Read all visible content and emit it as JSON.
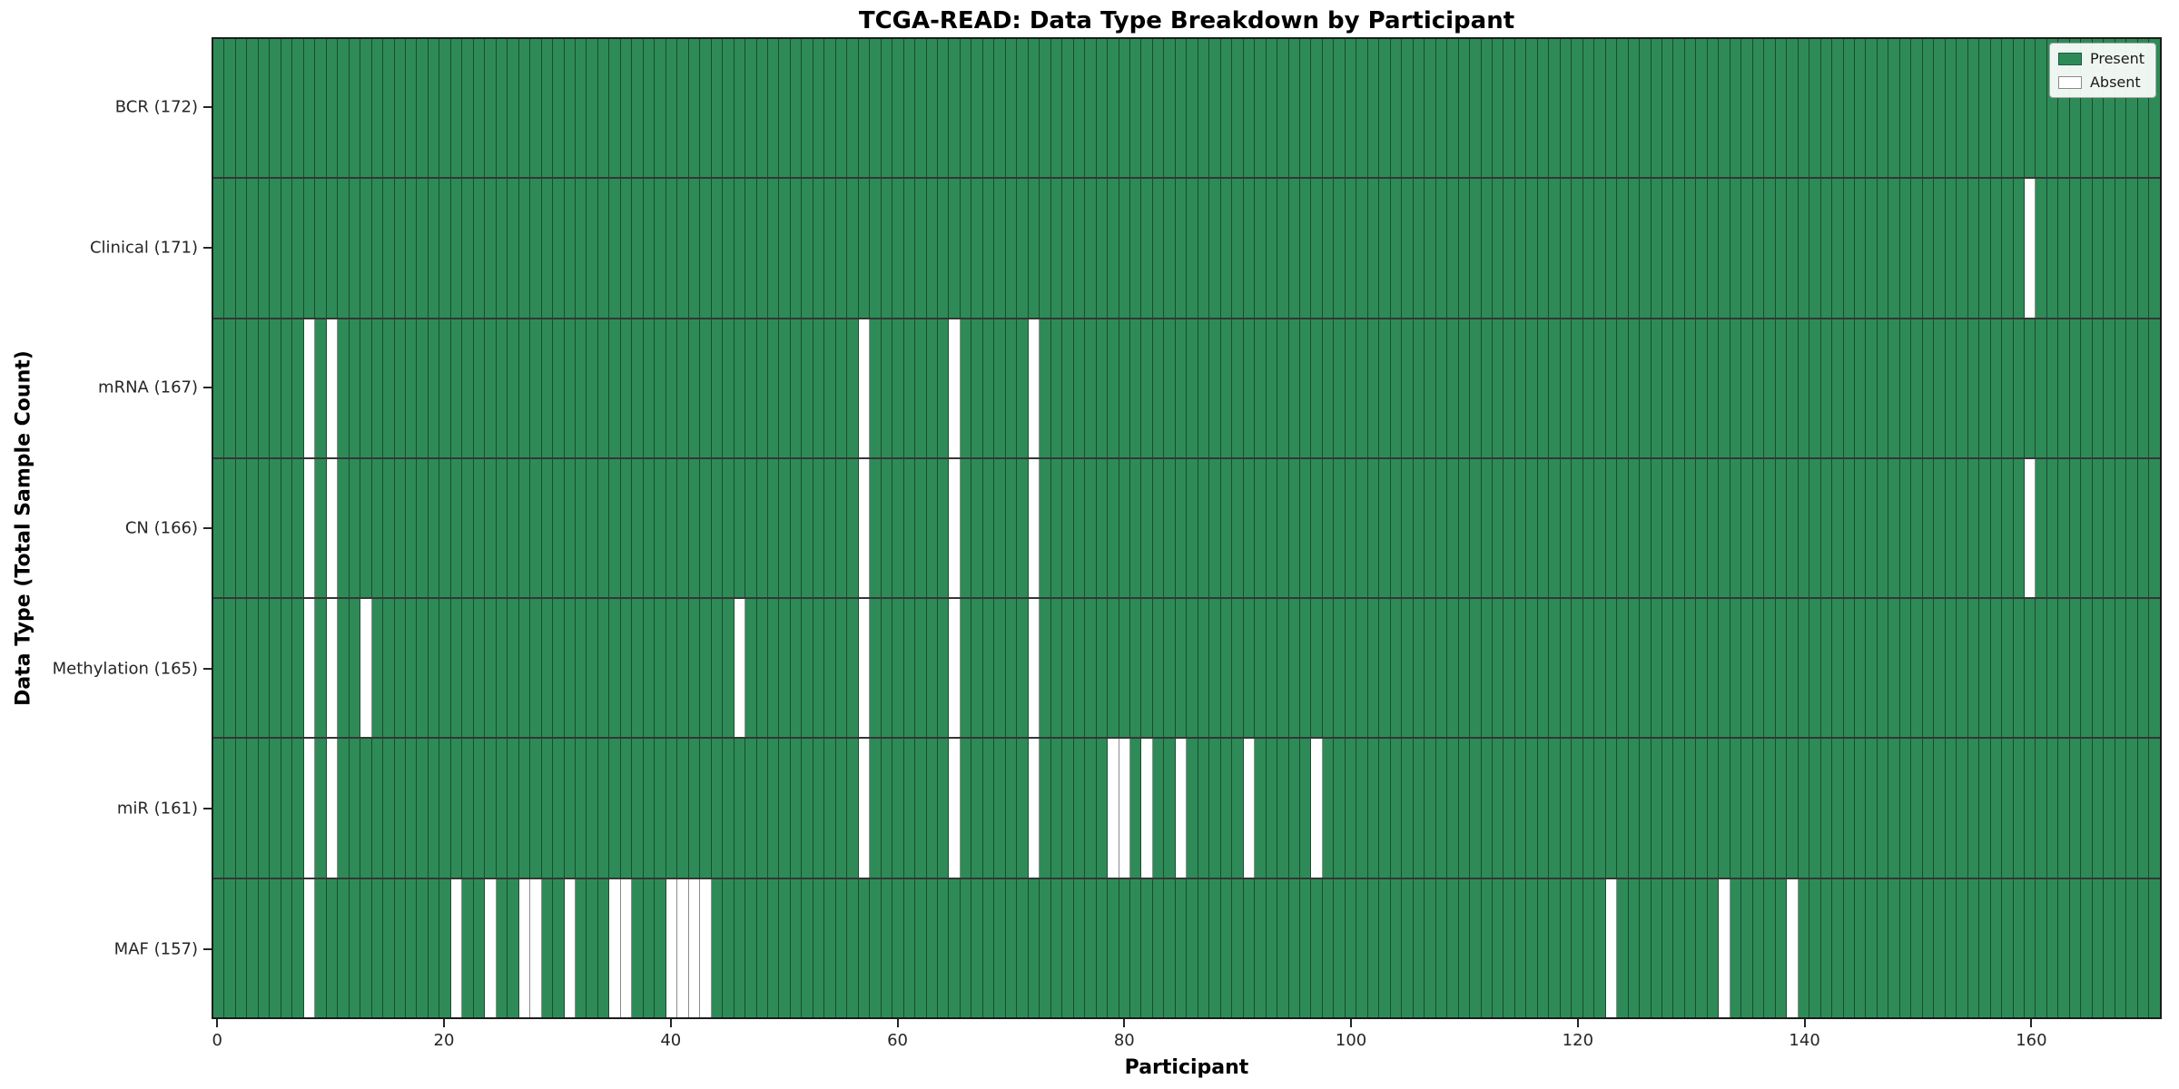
{
  "title": "TCGA-READ: Data Type Breakdown by Participant",
  "xlabel": "Participant",
  "ylabel": "Data Type (Total Sample Count)",
  "legend": {
    "position": "upper right",
    "present_label": "Present",
    "absent_label": "Absent"
  },
  "colors": {
    "present": "#2e8b57",
    "absent": "#ffffff",
    "cell_edge": "rgba(0,0,0,0.45)",
    "row_separator": "rgba(10,10,10,0.82)",
    "frame": "#1c1c1c"
  },
  "chart_data": {
    "type": "heatmap",
    "subtype": "presence-absence matrix",
    "x_axis": {
      "label": "Participant",
      "ticks": [
        0,
        20,
        40,
        60,
        80,
        100,
        120,
        140,
        160
      ],
      "range": [
        -0.5,
        171.5
      ]
    },
    "y_axis": {
      "label": "Data Type (Total Sample Count)"
    },
    "total_participants": 172,
    "grid": false,
    "rows": [
      {
        "name": "bcr",
        "label": "BCR (172)",
        "count": 172,
        "absent": []
      },
      {
        "name": "clinical",
        "label": "Clinical (171)",
        "count": 171,
        "absent": [
          160
        ]
      },
      {
        "name": "mrna",
        "label": "mRNA (167)",
        "count": 167,
        "absent": [
          8,
          10,
          57,
          65,
          72
        ]
      },
      {
        "name": "cn",
        "label": "CN (166)",
        "count": 166,
        "absent": [
          8,
          10,
          57,
          65,
          72,
          160
        ]
      },
      {
        "name": "methylation",
        "label": "Methylation (165)",
        "count": 165,
        "absent": [
          8,
          10,
          13,
          46,
          57,
          65,
          72
        ]
      },
      {
        "name": "mir",
        "label": "miR (161)",
        "count": 161,
        "absent": [
          8,
          10,
          57,
          65,
          72,
          79,
          80,
          82,
          85,
          91,
          97
        ]
      },
      {
        "name": "maf",
        "label": "MAF (157)",
        "count": 157,
        "absent": [
          8,
          21,
          24,
          27,
          28,
          31,
          35,
          36,
          40,
          41,
          42,
          43,
          123,
          133,
          139
        ]
      }
    ]
  }
}
